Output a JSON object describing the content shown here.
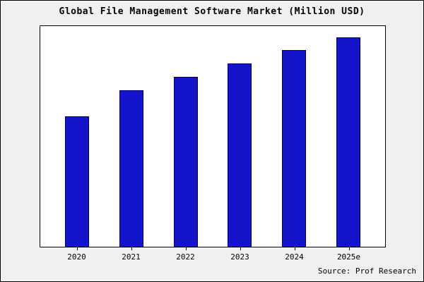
{
  "chart_data": {
    "type": "bar",
    "title": "Global File Management Software Market (Million USD)",
    "categories": [
      "2020",
      "2021",
      "2022",
      "2023",
      "2024",
      "2025e"
    ],
    "values": [
      59,
      71,
      77,
      83,
      89,
      95
    ],
    "ylim": [
      0,
      100
    ],
    "xlabel": "",
    "ylabel": "",
    "grid": false,
    "legend": "none",
    "bar_color": "#1414cc",
    "bar_border_color": "#000066",
    "plot_background": "#ffffff",
    "figure_background": "#f0f0f0",
    "source": "Source: Prof Research"
  }
}
